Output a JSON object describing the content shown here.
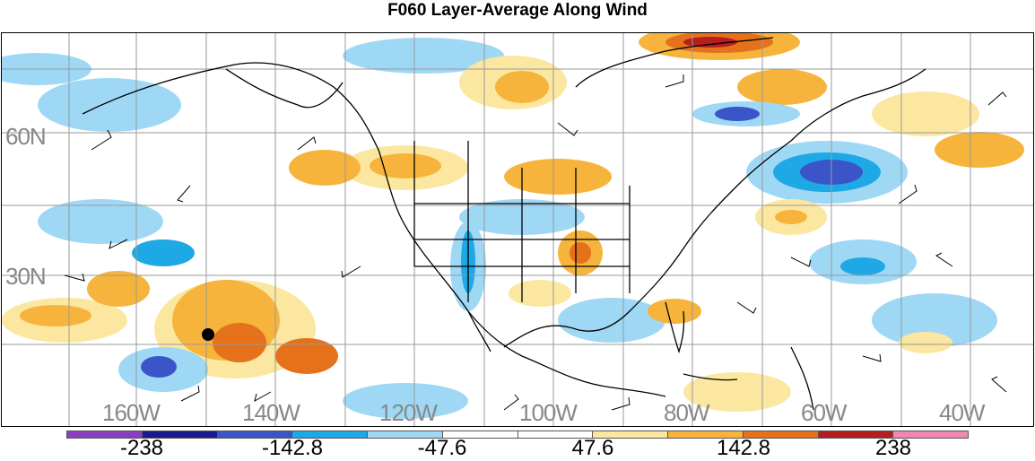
{
  "title": "F060 Layer-Average Along Wind",
  "map": {
    "latitude_labels": [
      "60N",
      "30N"
    ],
    "longitude_labels": [
      "160W",
      "140W",
      "120W",
      "100W",
      "80W",
      "60W",
      "40W"
    ],
    "marker": "storm-center-dot"
  },
  "colorbar": {
    "colors": [
      "#8a3fc0",
      "#1a1a8c",
      "#3a55c8",
      "#1fa8e6",
      "#9fd8f5",
      "#ffffff",
      "#ffffff",
      "#fbe7a0",
      "#f6b43c",
      "#e5711a",
      "#b51e1e",
      "#ee88b0"
    ],
    "labels": [
      "-238",
      "-142.8",
      "-47.6",
      "47.6",
      "142.8",
      "238"
    ]
  }
}
